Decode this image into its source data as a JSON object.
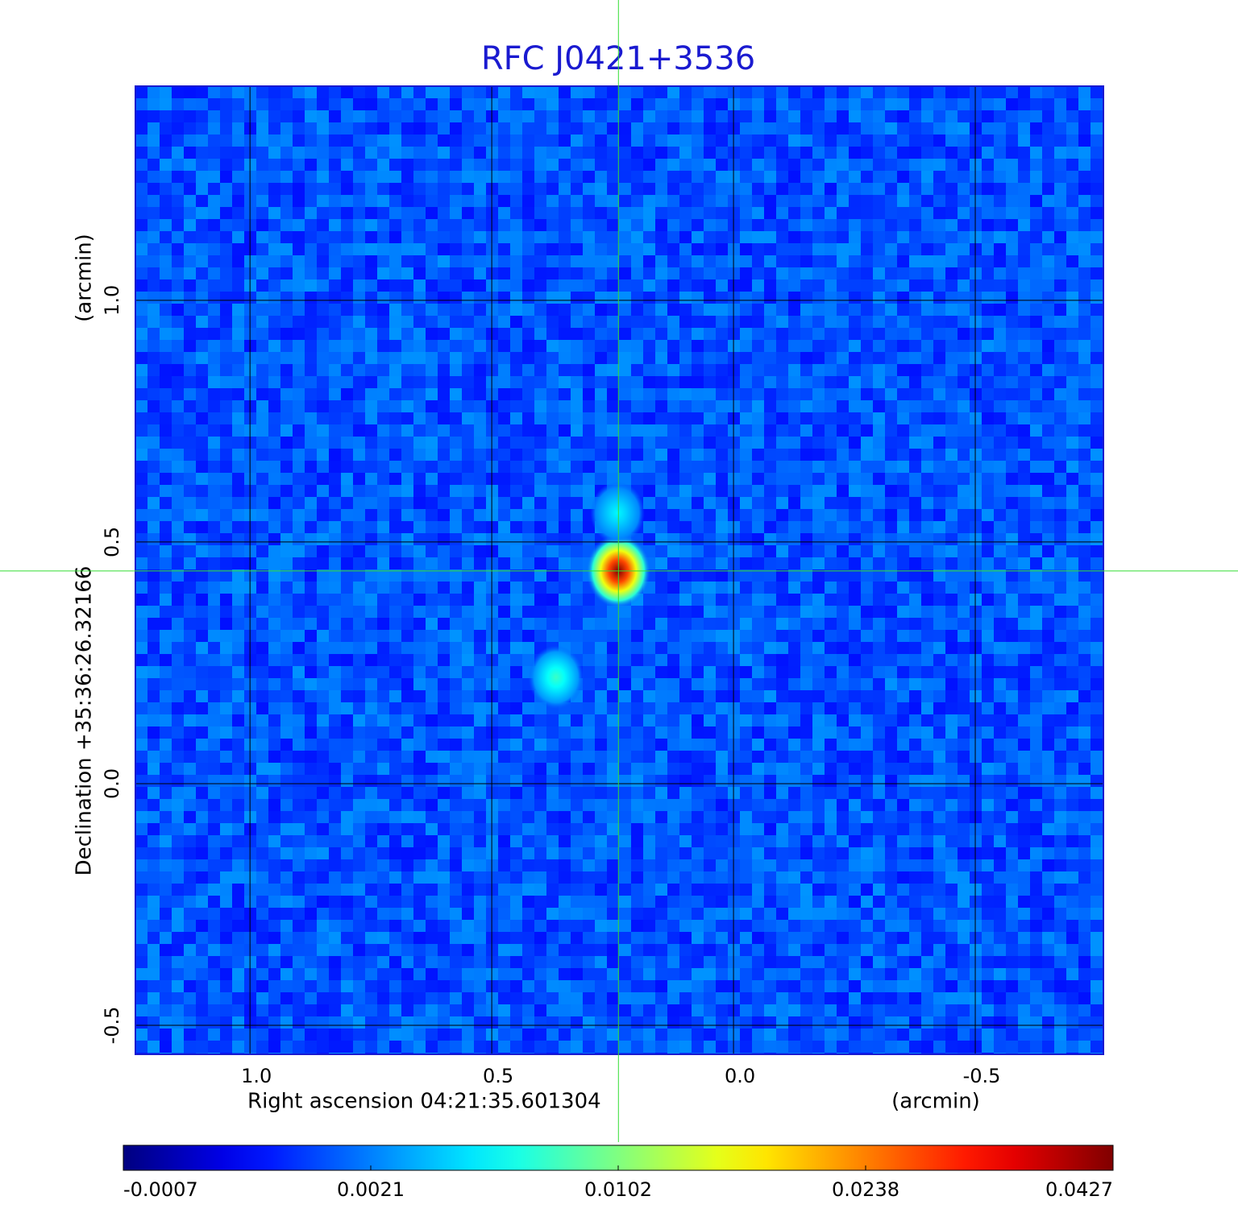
{
  "chart_data": {
    "type": "image",
    "title": "RFC J0421+3536",
    "x_label": "Right ascension  04:21:35.601304",
    "x_unit": "(arcmin)",
    "y_label": "Declination  +35:36:26.32166",
    "y_unit": "(arcmin)",
    "xlim": [
      1.237,
      -0.765
    ],
    "ylim": [
      -0.56,
      1.443
    ],
    "xticks": [
      {
        "value": 1,
        "label": "1.0"
      },
      0.5,
      {
        "value": 0,
        "label": "0.0"
      },
      -0.5
    ],
    "yticks": [
      -0.5,
      {
        "value": 0,
        "label": "0.0"
      },
      0.5,
      {
        "value": 1,
        "label": "1.0"
      }
    ],
    "grid": true,
    "crosshair": {
      "x": 0.238,
      "y": 0.44,
      "color": "#33dd33"
    },
    "colormap": "jet",
    "colorbar_ticks": [
      -0.0007,
      0.0021,
      0.0102,
      0.0238,
      0.0427
    ],
    "sources": [
      {
        "x": 0.238,
        "y": 0.44,
        "value": 0.0427
      },
      {
        "x": 0.24,
        "y": 0.56,
        "value": 0.006
      },
      {
        "x": 0.367,
        "y": 0.22,
        "value": 0.008
      }
    ]
  }
}
